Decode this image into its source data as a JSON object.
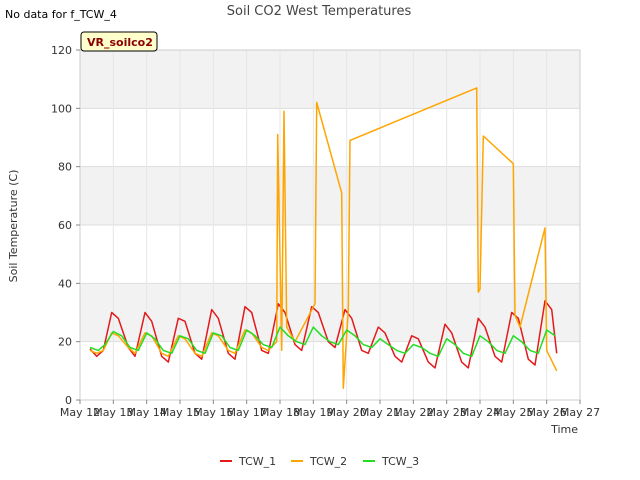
{
  "no_data_note": "No data for f_TCW_4",
  "site_badge": "VR_soilco2",
  "chart_data": {
    "type": "line",
    "title": "Soil CO2 West Temperatures",
    "xlabel": "Time",
    "ylabel": "Soil Temperature (C)",
    "xlim": [
      12,
      27
    ],
    "ylim": [
      0,
      120
    ],
    "x_ticks": [
      12,
      13,
      14,
      15,
      16,
      17,
      18,
      19,
      20,
      21,
      22,
      23,
      24,
      25,
      26,
      27
    ],
    "x_tick_labels": [
      "May 12",
      "May 13",
      "May 14",
      "May 15",
      "May 16",
      "May 17",
      "May 18",
      "May 19",
      "May 20",
      "May 21",
      "May 22",
      "May 23",
      "May 24",
      "May 25",
      "May 26",
      "May 27"
    ],
    "y_ticks": [
      0,
      20,
      40,
      60,
      80,
      100,
      120
    ],
    "grid": true,
    "legend_position": "bottom",
    "series": [
      {
        "name": "TCW_1",
        "color": "#e31a1c",
        "x": [
          12.3,
          12.5,
          12.7,
          12.95,
          13.15,
          13.45,
          13.65,
          13.95,
          14.15,
          14.45,
          14.65,
          14.95,
          15.15,
          15.45,
          15.65,
          15.95,
          16.15,
          16.45,
          16.65,
          16.95,
          17.15,
          17.45,
          17.65,
          17.95,
          18.15,
          18.45,
          18.65,
          18.95,
          19.15,
          19.45,
          19.65,
          19.95,
          20.15,
          20.45,
          20.65,
          20.95,
          21.15,
          21.45,
          21.65,
          21.95,
          22.15,
          22.45,
          22.65,
          22.95,
          23.15,
          23.45,
          23.65,
          23.95,
          24.15,
          24.45,
          24.65,
          24.95,
          25.15,
          25.45,
          25.65,
          25.95,
          26.15,
          26.3
        ],
        "y": [
          17.5,
          15,
          17,
          30,
          28,
          18,
          15,
          30,
          27,
          15,
          13,
          28,
          27,
          16,
          14,
          31,
          28,
          16,
          14,
          32,
          30,
          17,
          16,
          33,
          30,
          19,
          17,
          32,
          30,
          20,
          18,
          31,
          28,
          17,
          16,
          25,
          23,
          15,
          13,
          22,
          21,
          13,
          11,
          26,
          23,
          13,
          11,
          28,
          25,
          15,
          13,
          30,
          28,
          14,
          12,
          34,
          31,
          16
        ]
      },
      {
        "name": "TCW_2",
        "color": "#ffa500",
        "x": [
          12.3,
          12.5,
          12.7,
          12.95,
          13.15,
          13.45,
          13.65,
          13.95,
          14.15,
          14.45,
          14.65,
          14.95,
          15.15,
          15.45,
          15.65,
          15.95,
          16.15,
          16.45,
          16.65,
          16.95,
          17.15,
          17.45,
          17.65,
          17.9,
          17.93,
          18.05,
          18.12,
          18.2,
          18.45,
          19.05,
          19.1,
          19.85,
          19.9,
          20.05,
          20.1,
          23.9,
          23.95,
          24.0,
          24.1,
          25.0,
          25.05,
          25.2,
          25.95,
          26.0,
          26.3
        ],
        "y": [
          17,
          16,
          17,
          23,
          22,
          18,
          16,
          23,
          22,
          16,
          15,
          22,
          21,
          16,
          15,
          23,
          22,
          17,
          16,
          24,
          23,
          18,
          17,
          20,
          91,
          17,
          99,
          25,
          20,
          33,
          102,
          71,
          4,
          31,
          89,
          107,
          37,
          38,
          90.5,
          81,
          29,
          25,
          59,
          17,
          10
        ]
      },
      {
        "name": "TCW_3",
        "color": "#22dd22",
        "x": [
          12.3,
          12.55,
          12.75,
          13.0,
          13.25,
          13.5,
          13.75,
          14.0,
          14.25,
          14.5,
          14.75,
          15.0,
          15.25,
          15.5,
          15.75,
          16.0,
          16.25,
          16.5,
          16.75,
          17.0,
          17.25,
          17.5,
          17.75,
          18.0,
          18.25,
          18.5,
          18.75,
          19.0,
          19.25,
          19.5,
          19.75,
          20.0,
          20.25,
          20.5,
          20.75,
          21.0,
          21.25,
          21.5,
          21.75,
          22.0,
          22.25,
          22.5,
          22.75,
          23.0,
          23.25,
          23.5,
          23.75,
          24.0,
          24.25,
          24.5,
          24.75,
          25.0,
          25.25,
          25.5,
          25.75,
          26.0,
          26.25
        ],
        "y": [
          18,
          17,
          19,
          23.5,
          22,
          18,
          17,
          23,
          21,
          17,
          16,
          22,
          21,
          17,
          16,
          23,
          22,
          18,
          17,
          24,
          22,
          19,
          18,
          25,
          22,
          20,
          19,
          25,
          22,
          20,
          19,
          24,
          22,
          19,
          18,
          21,
          19,
          17,
          16,
          19,
          18,
          16,
          15,
          21,
          19,
          16,
          15,
          22,
          20,
          17,
          16,
          22,
          20,
          17,
          16,
          24,
          22
        ]
      }
    ]
  }
}
